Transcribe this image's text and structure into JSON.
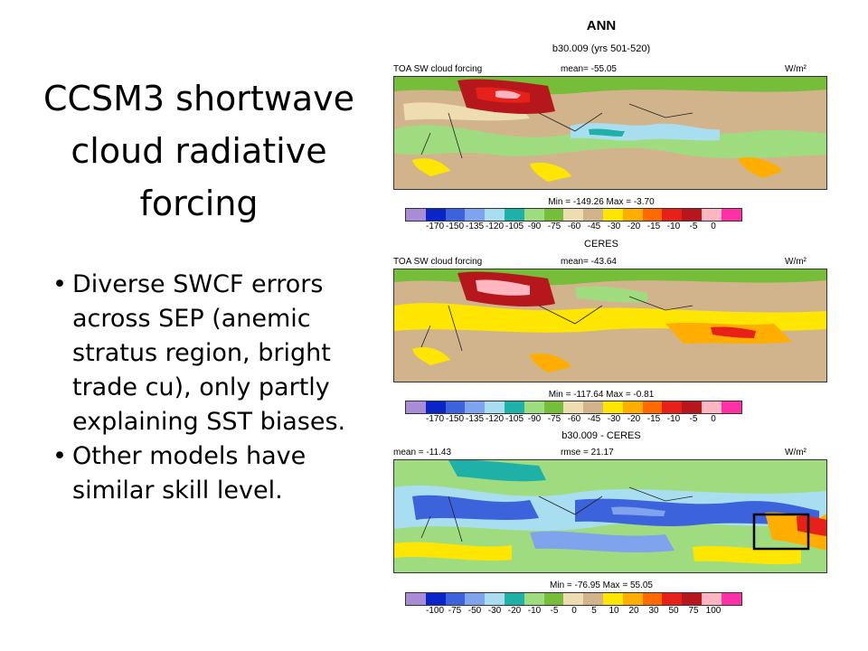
{
  "slide": {
    "title_lines": [
      "CCSM3 shortwave",
      "cloud radiative",
      "forcing"
    ],
    "bullets": [
      {
        "lines": [
          "Diverse SWCF errors",
          "across SEP (anemic",
          "stratus region, bright",
          "trade cu), only partly",
          "explaining SST biases."
        ]
      },
      {
        "lines": [
          "Other models have",
          "similar skill level."
        ]
      }
    ]
  },
  "figure": {
    "season": "ANN",
    "panels": [
      {
        "caption": "b30.009 (yrs 501-520)",
        "left_label": "TOA SW cloud forcing",
        "center_label": "mean= -55.05",
        "right_label": "W/m²",
        "minmax": "Min = -149.26 Max =  -3.70",
        "colorbar_ticks": [
          "-170",
          "-150",
          "-135",
          "-120",
          "-105",
          "-90",
          "-75",
          "-60",
          "-45",
          "-30",
          "-20",
          "-15",
          "-10",
          "-5",
          "0"
        ]
      },
      {
        "caption": "CERES",
        "left_label": "TOA SW cloud forcing",
        "center_label": "mean= -43.64",
        "right_label": "W/m²",
        "minmax": "Min = -117.64 Max = -0.81",
        "colorbar_ticks": [
          "-170",
          "-150",
          "-135",
          "-120",
          "-105",
          "-90",
          "-75",
          "-60",
          "-45",
          "-30",
          "-20",
          "-15",
          "-10",
          "-5",
          "0"
        ]
      },
      {
        "caption": "b30.009 - CERES",
        "left_label": "mean = -11.43",
        "center_label": "rmse = 21.17",
        "right_label": "W/m²",
        "minmax": "Min = -76.95 Max = 55.05",
        "colorbar_ticks": [
          "-100",
          "-75",
          "-50",
          "-30",
          "-20",
          "-10",
          "-5",
          "0",
          "5",
          "10",
          "20",
          "30",
          "50",
          "75",
          "100"
        ]
      }
    ],
    "colorbar_colors": [
      "#a98bd6",
      "#0a24c8",
      "#3c62dc",
      "#7fa3ec",
      "#a9def0",
      "#1fb0a8",
      "#9fdc80",
      "#76bd3a",
      "#eeddb0",
      "#d2b48c",
      "#ffe600",
      "#ffae00",
      "#ff6a00",
      "#e8201a",
      "#b5171c",
      "#ffb6c1",
      "#ff2fa5"
    ]
  }
}
